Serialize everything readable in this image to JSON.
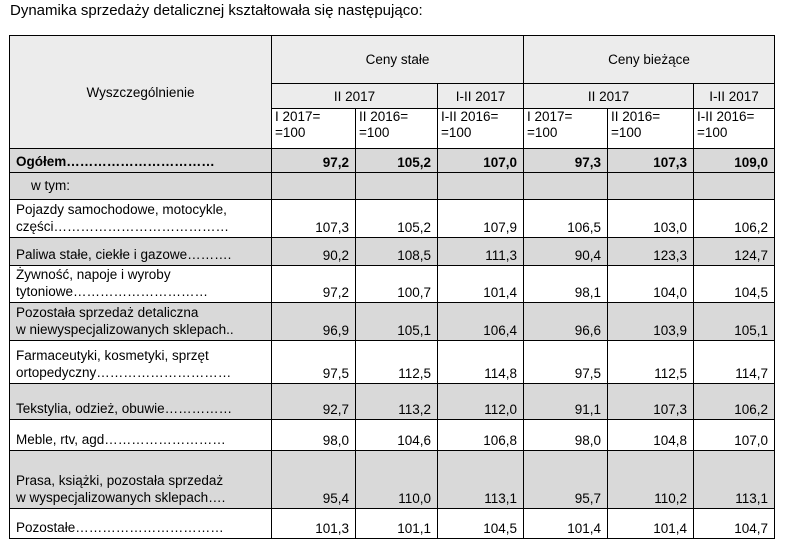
{
  "intro": "Dynamika sprzedaży detalicznej kształtowała się następująco:",
  "header": {
    "row_label": "Wyszczególnienie",
    "group1": "Ceny stałe",
    "group2": "Ceny bieżące",
    "g1_sub1": "II 2017",
    "g1_sub2": "I-II 2017",
    "g2_sub1": "II 2017",
    "g2_sub2": "I-II 2017",
    "col1": "I 2017=\n=100",
    "col2": "II 2016=\n=100",
    "col3": "I-II 2016=\n=100",
    "col4": "I 2017=\n=100",
    "col5": "II 2016=\n=100",
    "col6": "I-II 2016=\n=100"
  },
  "rows": [
    {
      "label": "Ogółem……………………………",
      "values": [
        "97,2",
        "105,2",
        "107,0",
        "97,3",
        "107,3",
        "109,0"
      ]
    },
    {
      "label": "    w tym:",
      "values": [
        "",
        "",
        "",
        "",
        "",
        ""
      ]
    },
    {
      "label": "Pojazdy samochodowe, motocykle,\nczęści…………………………………",
      "values": [
        "107,3",
        "105,2",
        "107,9",
        "106,5",
        "103,0",
        "106,2"
      ]
    },
    {
      "label": "Paliwa stałe, ciekłe i gazowe……….",
      "values": [
        "90,2",
        "108,5",
        "111,3",
        "90,4",
        "123,3",
        "124,7"
      ]
    },
    {
      "label": "Żywność, napoje i wyroby\ntytoniowe…………………………",
      "values": [
        "97,2",
        "100,7",
        "101,4",
        "98,1",
        "104,0",
        "104,5"
      ]
    },
    {
      "label": "Pozostała sprzedaż detaliczna\nw niewyspecjalizowanych sklepach..",
      "values": [
        "96,9",
        "105,1",
        "106,4",
        "96,6",
        "103,9",
        "105,1"
      ]
    },
    {
      "label": "Farmaceutyki, kosmetyki, sprzęt\nortopedyczny…………………………",
      "values": [
        "97,5",
        "112,5",
        "114,8",
        "97,5",
        "112,5",
        "114,7"
      ]
    },
    {
      "label": "Tekstylia, odzież, obuwie……………",
      "values": [
        "92,7",
        "113,2",
        "112,0",
        "91,1",
        "107,3",
        "106,2"
      ]
    },
    {
      "label": "Meble, rtv, agd………………………",
      "values": [
        "98,0",
        "104,6",
        "106,8",
        "98,0",
        "104,8",
        "107,0"
      ]
    },
    {
      "label": "Prasa, książki, pozostała sprzedaż\nw wyspecjalizowanych sklepach….",
      "values": [
        "95,4",
        "110,0",
        "113,1",
        "95,7",
        "110,2",
        "113,1"
      ]
    },
    {
      "label": "Pozostałe……………………………",
      "values": [
        "101,3",
        "101,1",
        "104,5",
        "101,4",
        "101,4",
        "104,7"
      ]
    }
  ]
}
